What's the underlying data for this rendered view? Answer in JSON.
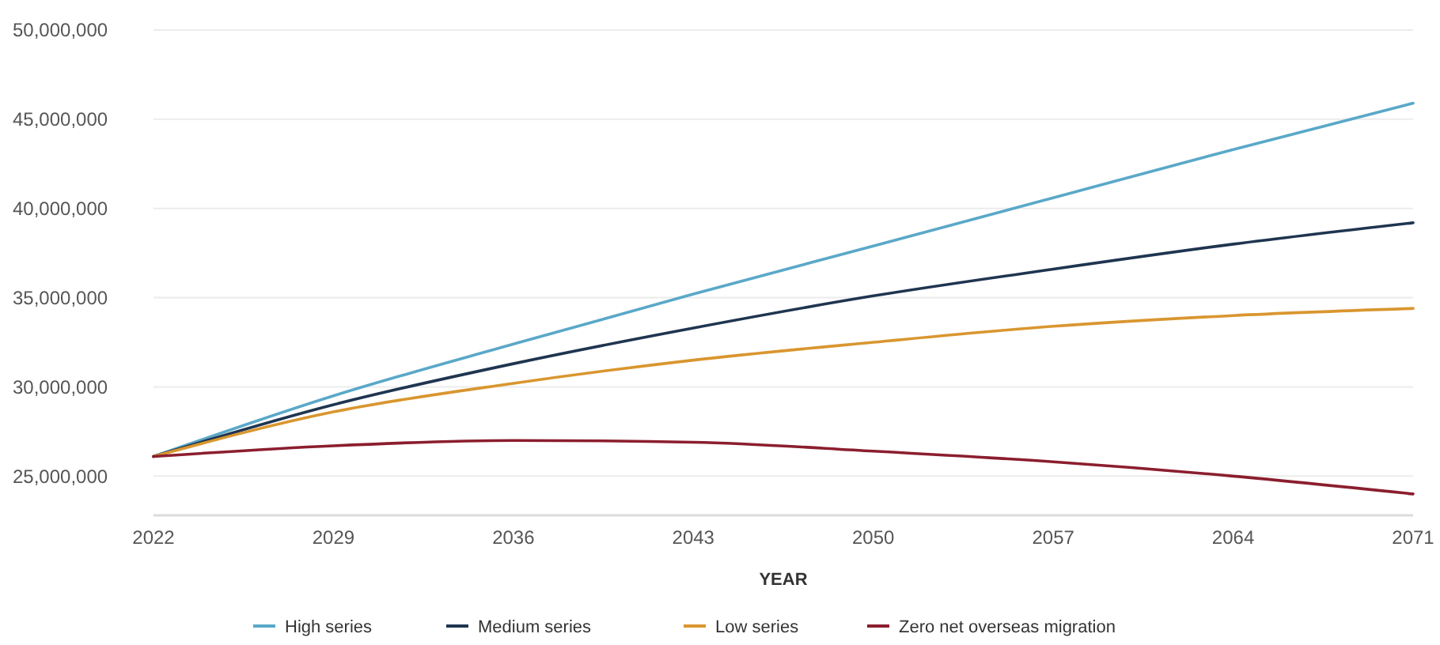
{
  "chart_data": {
    "type": "line",
    "xlabel": "YEAR",
    "x": [
      2022,
      2029,
      2036,
      2043,
      2050,
      2057,
      2064,
      2071
    ],
    "series": [
      {
        "name": "High series",
        "color": "#5aa8c8",
        "values": [
          26100000,
          29500000,
          32400000,
          35200000,
          37900000,
          40600000,
          43300000,
          45900000
        ]
      },
      {
        "name": "Medium series",
        "color": "#1f3550",
        "values": [
          26100000,
          29000000,
          31300000,
          33300000,
          35100000,
          36600000,
          38000000,
          39200000
        ]
      },
      {
        "name": "Low series",
        "color": "#d9962f",
        "values": [
          26100000,
          28600000,
          30200000,
          31500000,
          32500000,
          33400000,
          34000000,
          34400000
        ]
      },
      {
        "name": "Zero net overseas migration",
        "color": "#8b1e2e",
        "values": [
          26100000,
          26700000,
          27000000,
          26900000,
          26400000,
          25800000,
          25000000,
          24000000
        ]
      }
    ],
    "xlim": [
      2022,
      2071
    ],
    "xticks": [
      2022,
      2029,
      2036,
      2043,
      2050,
      2057,
      2064,
      2071
    ],
    "ylim": [
      22800000,
      50000000
    ],
    "yticks": [
      {
        "value": 25000000,
        "label": "25,000,000"
      },
      {
        "value": 30000000,
        "label": "30,000,000"
      },
      {
        "value": 35000000,
        "label": "35,000,000"
      },
      {
        "value": 40000000,
        "label": "40,000,000"
      },
      {
        "value": 45000000,
        "label": "45,000,000"
      },
      {
        "value": 50000000,
        "label": "50,000,000"
      }
    ],
    "grid": "y",
    "legend": "bottom",
    "marker": "none",
    "line_style": "solid"
  }
}
